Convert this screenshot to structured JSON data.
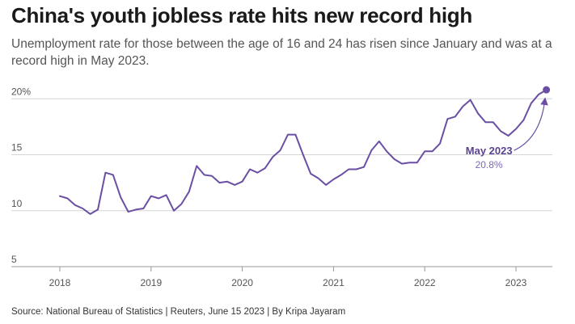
{
  "header": {
    "title": "China's youth jobless rate hits new record high",
    "subtitle": "Unemployment rate for those between the age of 16 and 24 has risen since January and was at a record high in May 2023."
  },
  "footer": {
    "source": "Source: National Bureau of Statistics | Reuters, June 15 2023 | By Kripa Jayaram"
  },
  "colors": {
    "series": "#6a4fa3",
    "annotation_title": "#5b4391",
    "annotation_value": "#7d68b3"
  },
  "chart_data": {
    "type": "line",
    "title": "China's youth jobless rate hits new record high",
    "xlabel": "",
    "ylabel": "",
    "grid": "horizontal",
    "ylim": [
      5,
      21.5
    ],
    "y_ticks": [
      {
        "value": 20,
        "label": "20%"
      },
      {
        "value": 15,
        "label": "15"
      },
      {
        "value": 10,
        "label": "10"
      },
      {
        "value": 5,
        "label": "5"
      }
    ],
    "x_ticks": [
      "2018",
      "2019",
      "2020",
      "2021",
      "2022",
      "2023"
    ],
    "x_start": "2018-01",
    "series": [
      {
        "name": "",
        "x": [
          "2018-01",
          "2018-02",
          "2018-03",
          "2018-04",
          "2018-05",
          "2018-06",
          "2018-07",
          "2018-08",
          "2018-09",
          "2018-10",
          "2018-11",
          "2018-12",
          "2019-01",
          "2019-02",
          "2019-03",
          "2019-04",
          "2019-05",
          "2019-06",
          "2019-07",
          "2019-08",
          "2019-09",
          "2019-10",
          "2019-11",
          "2019-12",
          "2020-01",
          "2020-02",
          "2020-03",
          "2020-04",
          "2020-05",
          "2020-06",
          "2020-07",
          "2020-08",
          "2020-09",
          "2020-10",
          "2020-11",
          "2020-12",
          "2021-01",
          "2021-02",
          "2021-03",
          "2021-04",
          "2021-05",
          "2021-06",
          "2021-07",
          "2021-08",
          "2021-09",
          "2021-10",
          "2021-11",
          "2021-12",
          "2022-01",
          "2022-02",
          "2022-03",
          "2022-04",
          "2022-05",
          "2022-06",
          "2022-07",
          "2022-08",
          "2022-09",
          "2022-10",
          "2022-11",
          "2022-12",
          "2023-01",
          "2023-02",
          "2023-03",
          "2023-04",
          "2023-05"
        ],
        "values": [
          11.3,
          11.1,
          10.5,
          10.2,
          9.7,
          10.1,
          13.4,
          13.2,
          11.2,
          9.9,
          10.1,
          10.2,
          11.3,
          11.1,
          11.4,
          10.0,
          10.6,
          11.7,
          14.0,
          13.2,
          13.1,
          12.5,
          12.6,
          12.3,
          12.6,
          13.7,
          13.4,
          13.8,
          14.8,
          15.4,
          16.8,
          16.8,
          15.0,
          13.3,
          12.9,
          12.3,
          12.8,
          13.2,
          13.7,
          13.7,
          13.9,
          15.4,
          16.2,
          15.3,
          14.6,
          14.2,
          14.3,
          14.3,
          15.3,
          15.3,
          16.0,
          18.2,
          18.4,
          19.3,
          19.9,
          18.7,
          17.9,
          17.9,
          17.1,
          16.7,
          17.3,
          18.1,
          19.6,
          20.4,
          20.8
        ]
      }
    ],
    "annotation": {
      "title": "May 2023",
      "value": "20.8%",
      "x": "2023-05",
      "y": 20.8
    }
  }
}
